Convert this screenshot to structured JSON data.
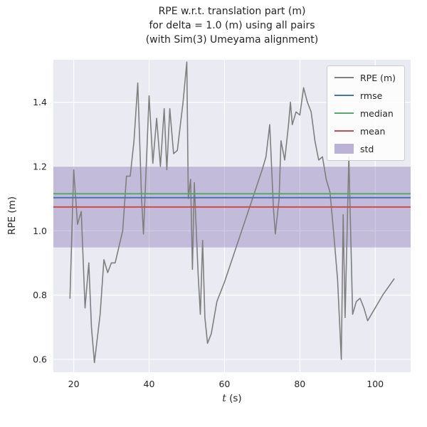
{
  "title_lines": [
    "RPE w.r.t. translation part (m)",
    "for delta = 1.0 (m) using all pairs",
    "(with Sim(3) Umeyama alignment)"
  ],
  "text_color": "#262626",
  "chart_data": {
    "type": "line",
    "title": "RPE w.r.t. translation part (m)\nfor delta = 1.0 (m) using all pairs\n(with Sim(3) Umeyama alignment)",
    "xlabel": "t (s)",
    "xlabel_italic": "t",
    "xlabel_rest": " (s)",
    "ylabel": "RPE (m)",
    "xlim": [
      14.6,
      109.4
    ],
    "ylim": [
      0.56,
      1.532
    ],
    "xticks": [
      20,
      40,
      60,
      80,
      100
    ],
    "xtick_labels": [
      "20",
      "40",
      "60",
      "80",
      "100"
    ],
    "yticks": [
      0.6,
      0.8,
      1.0,
      1.2,
      1.4
    ],
    "ytick_labels": [
      "0.6",
      "0.8",
      "1.0",
      "1.2",
      "1.4"
    ],
    "grid": true,
    "background": "#eaeaf2",
    "grid_color": "#ffffff",
    "legend_position": "upper right",
    "series": [
      {
        "name": "RPE (m)",
        "kind": "line",
        "color": "#7f7f7f",
        "x": [
          19,
          20,
          21,
          22,
          23,
          24,
          24.7,
          25.5,
          27,
          28,
          29,
          30,
          31,
          33,
          34,
          35,
          36,
          37,
          38,
          38.5,
          40,
          41,
          42,
          43,
          44,
          44.7,
          45.5,
          46.5,
          47.5,
          49,
          50,
          50.4,
          51,
          51.5,
          52,
          53,
          53.6,
          54.2,
          54.8,
          55.5,
          56.5,
          58,
          60,
          62,
          64,
          66,
          68,
          70,
          71,
          72,
          73,
          73.5,
          74.5,
          75,
          76,
          77,
          77.5,
          78,
          79,
          80,
          81,
          82,
          83,
          84,
          85,
          86,
          87,
          88,
          89,
          90,
          91,
          91.5,
          92,
          93,
          94,
          95,
          96,
          97,
          98,
          100,
          102,
          105
        ],
        "y": [
          0.79,
          1.19,
          1.02,
          1.06,
          0.76,
          0.9,
          0.7,
          0.59,
          0.74,
          0.91,
          0.87,
          0.9,
          0.9,
          1.0,
          1.17,
          1.17,
          1.28,
          1.46,
          1.1,
          0.99,
          1.42,
          1.21,
          1.35,
          1.2,
          1.38,
          1.19,
          1.38,
          1.24,
          1.25,
          1.4,
          1.525,
          1.1,
          1.16,
          0.88,
          1.15,
          0.87,
          0.74,
          0.97,
          0.73,
          0.65,
          0.68,
          0.78,
          0.84,
          0.91,
          0.98,
          1.05,
          1.12,
          1.19,
          1.23,
          1.33,
          1.07,
          0.99,
          1.1,
          1.28,
          1.22,
          1.33,
          1.4,
          1.33,
          1.37,
          1.36,
          1.445,
          1.4,
          1.37,
          1.28,
          1.22,
          1.23,
          1.16,
          1.12,
          0.99,
          0.85,
          0.6,
          1.05,
          0.73,
          1.23,
          0.74,
          0.78,
          0.79,
          0.76,
          0.72,
          0.76,
          0.8,
          0.85
        ]
      },
      {
        "name": "rmse",
        "kind": "hline",
        "color": "#4c72b0",
        "value": 1.103
      },
      {
        "name": "median",
        "kind": "hline",
        "color": "#55a868",
        "value": 1.115
      },
      {
        "name": "mean",
        "kind": "hline",
        "color": "#c44e52",
        "value": 1.074
      },
      {
        "name": "std",
        "kind": "band",
        "color": "#8172b2",
        "alpha": 0.38,
        "low": 0.948,
        "high": 1.2
      }
    ]
  }
}
